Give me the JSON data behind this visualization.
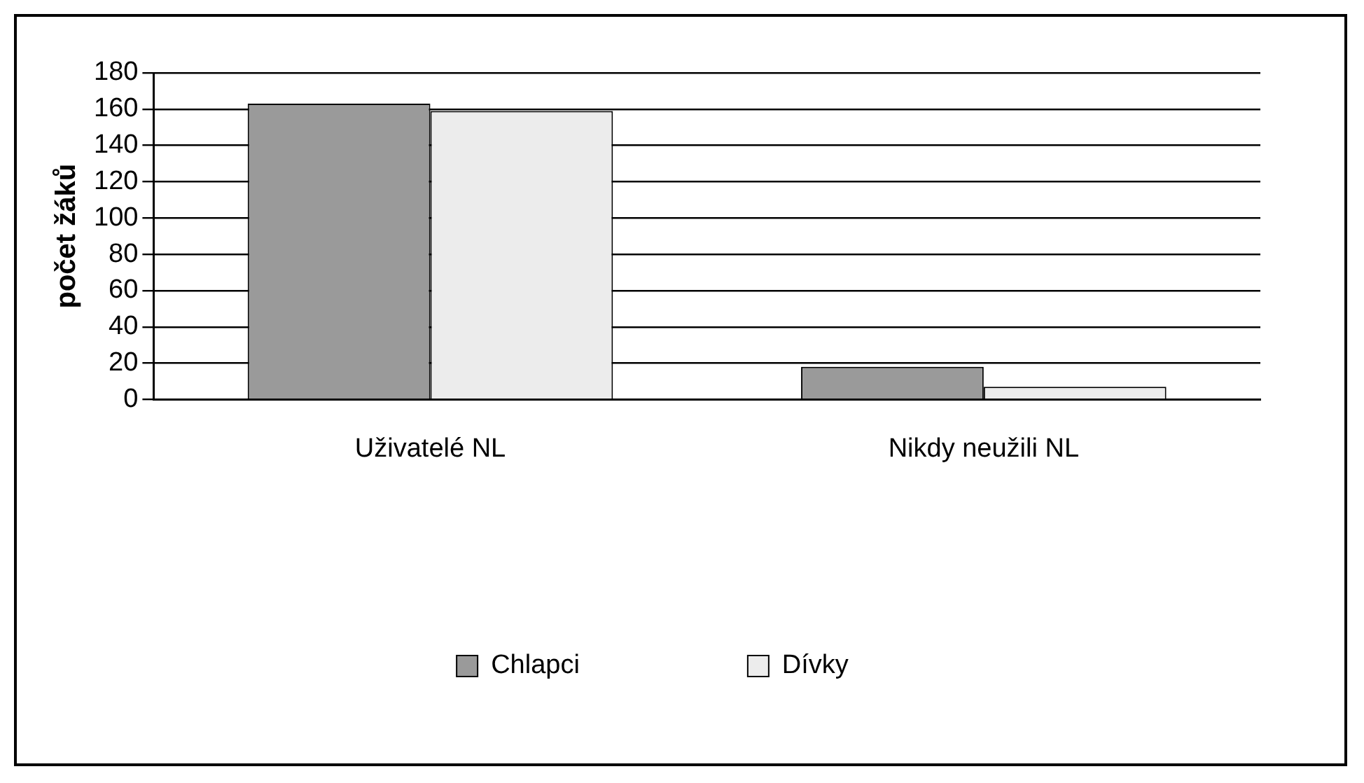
{
  "chart_data": {
    "type": "bar",
    "ylabel": "počet žáků",
    "categories": [
      "Uživatelé NL",
      "Nikdy neužili NL"
    ],
    "series": [
      {
        "name": "Chlapci",
        "color": "#9a9a9a",
        "values": [
          163,
          18
        ]
      },
      {
        "name": "Dívky",
        "color": "#ececec",
        "values": [
          159,
          7
        ]
      }
    ],
    "ylim": [
      0,
      180
    ],
    "yticks": [
      0,
      20,
      40,
      60,
      80,
      100,
      120,
      140,
      160,
      180
    ],
    "grid": "y",
    "legend": "bottom"
  }
}
